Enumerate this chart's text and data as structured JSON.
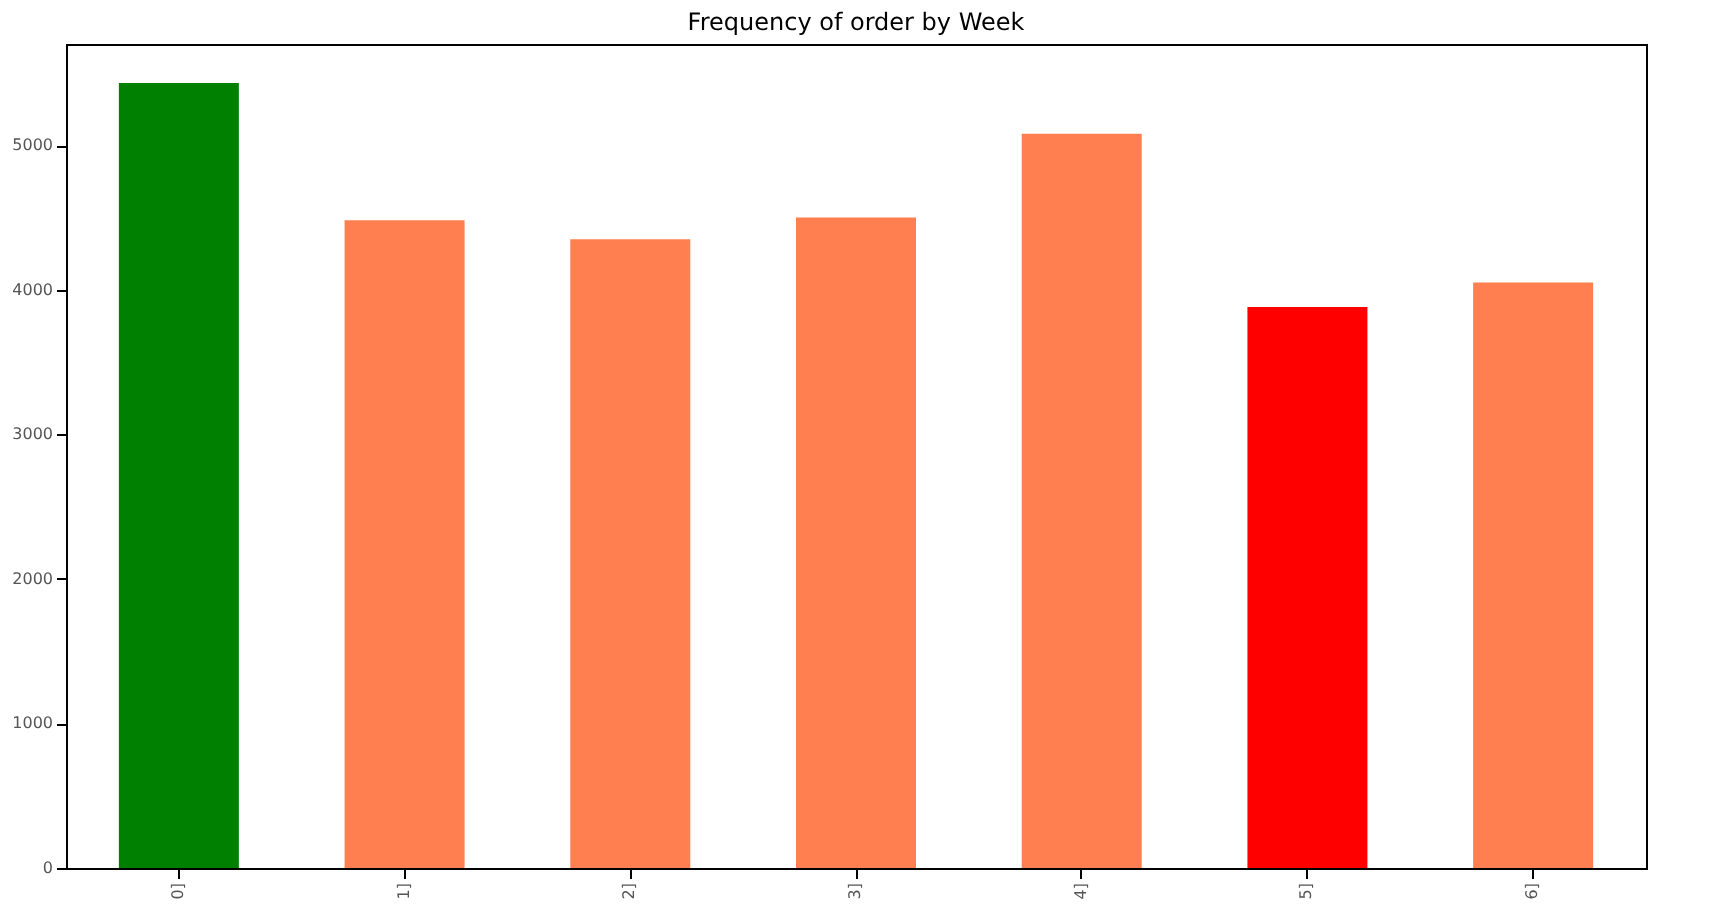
{
  "chart_data": {
    "type": "bar",
    "title": "Frequency of order by Week",
    "categories": [
      "0]",
      "1]",
      "2]",
      "3]",
      "4]",
      "5]",
      "6]"
    ],
    "values": [
      5430,
      4480,
      4350,
      4500,
      5080,
      3880,
      4050
    ],
    "colors": [
      "#008000",
      "#ff7f50",
      "#ff7f50",
      "#ff7f50",
      "#ff7f50",
      "#ff0000",
      "#ff7f50"
    ],
    "ylim": [
      0,
      5700
    ],
    "yticks": [
      0,
      1000,
      2000,
      3000,
      4000,
      5000
    ],
    "grid": false
  }
}
